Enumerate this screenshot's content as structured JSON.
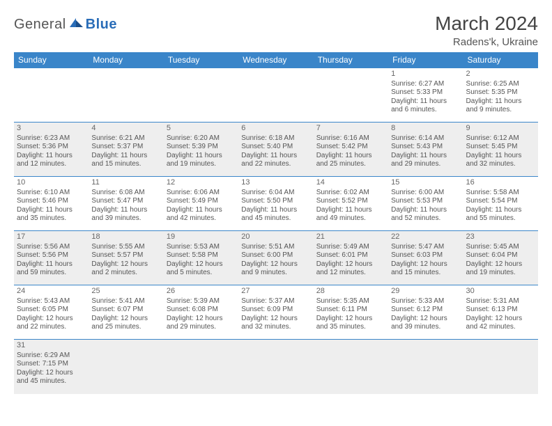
{
  "logo": {
    "general": "General",
    "blue": "Blue"
  },
  "title": "March 2024",
  "location": "Radens'k, Ukraine",
  "colors": {
    "header_bg": "#3a85c9",
    "header_text": "#ffffff",
    "shaded_bg": "#eeeeee",
    "border": "#3a85c9",
    "text": "#555555",
    "logo_blue": "#2a6db8"
  },
  "dayHeaders": [
    "Sunday",
    "Monday",
    "Tuesday",
    "Wednesday",
    "Thursday",
    "Friday",
    "Saturday"
  ],
  "weeks": [
    [
      null,
      null,
      null,
      null,
      null,
      {
        "n": "1",
        "sr": "Sunrise: 6:27 AM",
        "ss": "Sunset: 5:33 PM",
        "d1": "Daylight: 11 hours",
        "d2": "and 6 minutes."
      },
      {
        "n": "2",
        "sr": "Sunrise: 6:25 AM",
        "ss": "Sunset: 5:35 PM",
        "d1": "Daylight: 11 hours",
        "d2": "and 9 minutes."
      }
    ],
    [
      {
        "n": "3",
        "sr": "Sunrise: 6:23 AM",
        "ss": "Sunset: 5:36 PM",
        "d1": "Daylight: 11 hours",
        "d2": "and 12 minutes."
      },
      {
        "n": "4",
        "sr": "Sunrise: 6:21 AM",
        "ss": "Sunset: 5:37 PM",
        "d1": "Daylight: 11 hours",
        "d2": "and 15 minutes."
      },
      {
        "n": "5",
        "sr": "Sunrise: 6:20 AM",
        "ss": "Sunset: 5:39 PM",
        "d1": "Daylight: 11 hours",
        "d2": "and 19 minutes."
      },
      {
        "n": "6",
        "sr": "Sunrise: 6:18 AM",
        "ss": "Sunset: 5:40 PM",
        "d1": "Daylight: 11 hours",
        "d2": "and 22 minutes."
      },
      {
        "n": "7",
        "sr": "Sunrise: 6:16 AM",
        "ss": "Sunset: 5:42 PM",
        "d1": "Daylight: 11 hours",
        "d2": "and 25 minutes."
      },
      {
        "n": "8",
        "sr": "Sunrise: 6:14 AM",
        "ss": "Sunset: 5:43 PM",
        "d1": "Daylight: 11 hours",
        "d2": "and 29 minutes."
      },
      {
        "n": "9",
        "sr": "Sunrise: 6:12 AM",
        "ss": "Sunset: 5:45 PM",
        "d1": "Daylight: 11 hours",
        "d2": "and 32 minutes."
      }
    ],
    [
      {
        "n": "10",
        "sr": "Sunrise: 6:10 AM",
        "ss": "Sunset: 5:46 PM",
        "d1": "Daylight: 11 hours",
        "d2": "and 35 minutes."
      },
      {
        "n": "11",
        "sr": "Sunrise: 6:08 AM",
        "ss": "Sunset: 5:47 PM",
        "d1": "Daylight: 11 hours",
        "d2": "and 39 minutes."
      },
      {
        "n": "12",
        "sr": "Sunrise: 6:06 AM",
        "ss": "Sunset: 5:49 PM",
        "d1": "Daylight: 11 hours",
        "d2": "and 42 minutes."
      },
      {
        "n": "13",
        "sr": "Sunrise: 6:04 AM",
        "ss": "Sunset: 5:50 PM",
        "d1": "Daylight: 11 hours",
        "d2": "and 45 minutes."
      },
      {
        "n": "14",
        "sr": "Sunrise: 6:02 AM",
        "ss": "Sunset: 5:52 PM",
        "d1": "Daylight: 11 hours",
        "d2": "and 49 minutes."
      },
      {
        "n": "15",
        "sr": "Sunrise: 6:00 AM",
        "ss": "Sunset: 5:53 PM",
        "d1": "Daylight: 11 hours",
        "d2": "and 52 minutes."
      },
      {
        "n": "16",
        "sr": "Sunrise: 5:58 AM",
        "ss": "Sunset: 5:54 PM",
        "d1": "Daylight: 11 hours",
        "d2": "and 55 minutes."
      }
    ],
    [
      {
        "n": "17",
        "sr": "Sunrise: 5:56 AM",
        "ss": "Sunset: 5:56 PM",
        "d1": "Daylight: 11 hours",
        "d2": "and 59 minutes."
      },
      {
        "n": "18",
        "sr": "Sunrise: 5:55 AM",
        "ss": "Sunset: 5:57 PM",
        "d1": "Daylight: 12 hours",
        "d2": "and 2 minutes."
      },
      {
        "n": "19",
        "sr": "Sunrise: 5:53 AM",
        "ss": "Sunset: 5:58 PM",
        "d1": "Daylight: 12 hours",
        "d2": "and 5 minutes."
      },
      {
        "n": "20",
        "sr": "Sunrise: 5:51 AM",
        "ss": "Sunset: 6:00 PM",
        "d1": "Daylight: 12 hours",
        "d2": "and 9 minutes."
      },
      {
        "n": "21",
        "sr": "Sunrise: 5:49 AM",
        "ss": "Sunset: 6:01 PM",
        "d1": "Daylight: 12 hours",
        "d2": "and 12 minutes."
      },
      {
        "n": "22",
        "sr": "Sunrise: 5:47 AM",
        "ss": "Sunset: 6:03 PM",
        "d1": "Daylight: 12 hours",
        "d2": "and 15 minutes."
      },
      {
        "n": "23",
        "sr": "Sunrise: 5:45 AM",
        "ss": "Sunset: 6:04 PM",
        "d1": "Daylight: 12 hours",
        "d2": "and 19 minutes."
      }
    ],
    [
      {
        "n": "24",
        "sr": "Sunrise: 5:43 AM",
        "ss": "Sunset: 6:05 PM",
        "d1": "Daylight: 12 hours",
        "d2": "and 22 minutes."
      },
      {
        "n": "25",
        "sr": "Sunrise: 5:41 AM",
        "ss": "Sunset: 6:07 PM",
        "d1": "Daylight: 12 hours",
        "d2": "and 25 minutes."
      },
      {
        "n": "26",
        "sr": "Sunrise: 5:39 AM",
        "ss": "Sunset: 6:08 PM",
        "d1": "Daylight: 12 hours",
        "d2": "and 29 minutes."
      },
      {
        "n": "27",
        "sr": "Sunrise: 5:37 AM",
        "ss": "Sunset: 6:09 PM",
        "d1": "Daylight: 12 hours",
        "d2": "and 32 minutes."
      },
      {
        "n": "28",
        "sr": "Sunrise: 5:35 AM",
        "ss": "Sunset: 6:11 PM",
        "d1": "Daylight: 12 hours",
        "d2": "and 35 minutes."
      },
      {
        "n": "29",
        "sr": "Sunrise: 5:33 AM",
        "ss": "Sunset: 6:12 PM",
        "d1": "Daylight: 12 hours",
        "d2": "and 39 minutes."
      },
      {
        "n": "30",
        "sr": "Sunrise: 5:31 AM",
        "ss": "Sunset: 6:13 PM",
        "d1": "Daylight: 12 hours",
        "d2": "and 42 minutes."
      }
    ],
    [
      {
        "n": "31",
        "sr": "Sunrise: 6:29 AM",
        "ss": "Sunset: 7:15 PM",
        "d1": "Daylight: 12 hours",
        "d2": "and 45 minutes."
      },
      null,
      null,
      null,
      null,
      null,
      null
    ]
  ]
}
